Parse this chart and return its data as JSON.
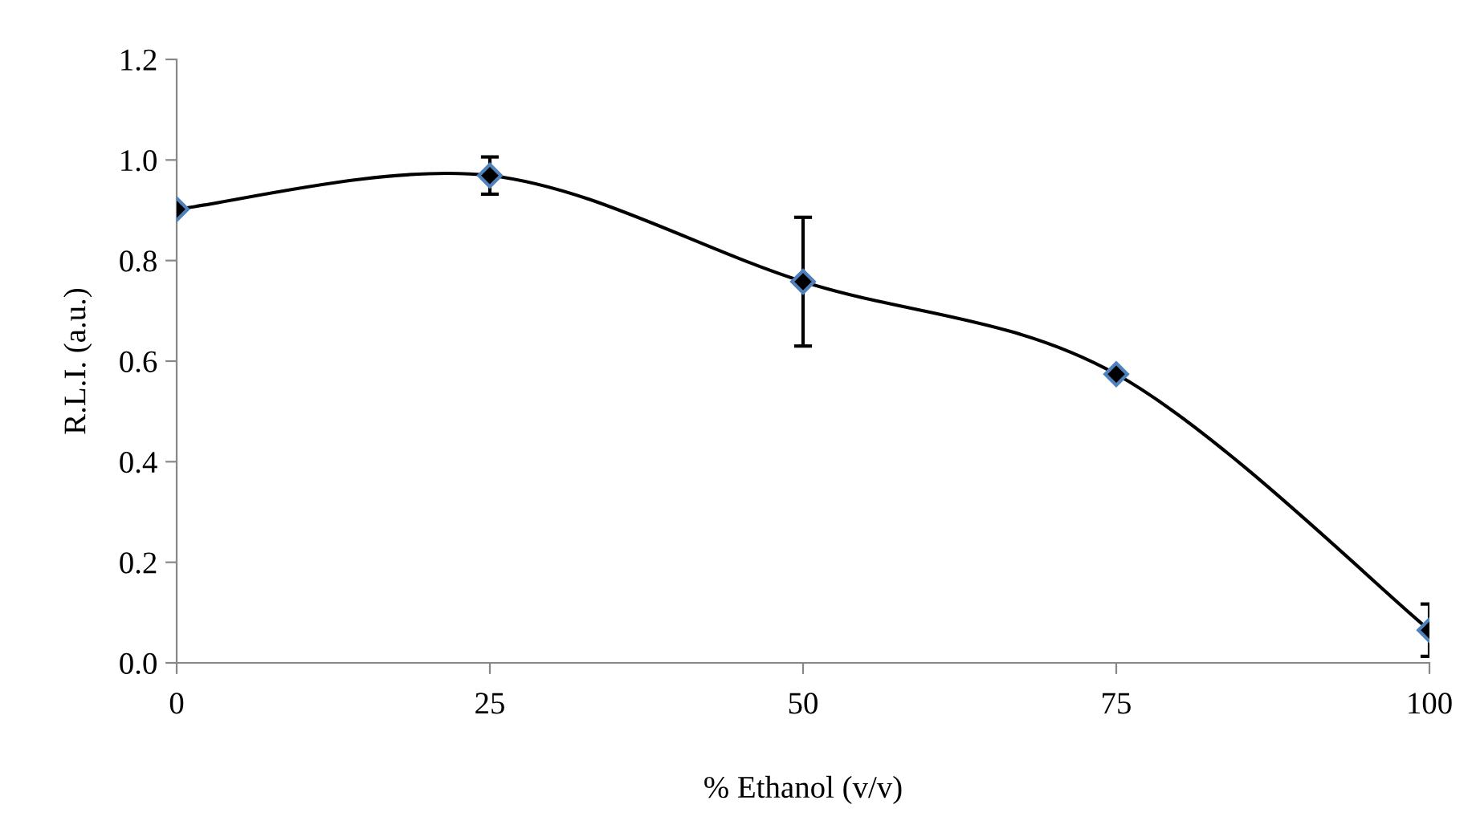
{
  "chart_data": {
    "type": "line",
    "xlabel": "% Ethanol (v/v)",
    "ylabel": "R.L.I. (a.u.)",
    "x": [
      0,
      25,
      50,
      75,
      100
    ],
    "series": [
      {
        "color": "#000000",
        "values": [
          0.902,
          0.969,
          0.758,
          0.574,
          0.065
        ],
        "errors": [
          null,
          0.037,
          0.128,
          null,
          0.052
        ]
      }
    ],
    "xlim": [
      0,
      100
    ],
    "xticks": [
      0,
      25,
      50,
      75,
      100
    ],
    "ylim": [
      0,
      1.2
    ],
    "yticks": [
      {
        "value": 0,
        "label": "0.0"
      },
      {
        "value": 0.2,
        "label": "0.2"
      },
      {
        "value": 0.4,
        "label": "0.4"
      },
      {
        "value": 0.6,
        "label": "0.6"
      },
      {
        "value": 0.8,
        "label": "0.8"
      },
      {
        "value": 1.0,
        "label": "1.0"
      },
      {
        "value": 1.2,
        "label": "1.2"
      }
    ],
    "grid": false,
    "legend": false,
    "marker": "diamond",
    "line_style": "solid"
  }
}
